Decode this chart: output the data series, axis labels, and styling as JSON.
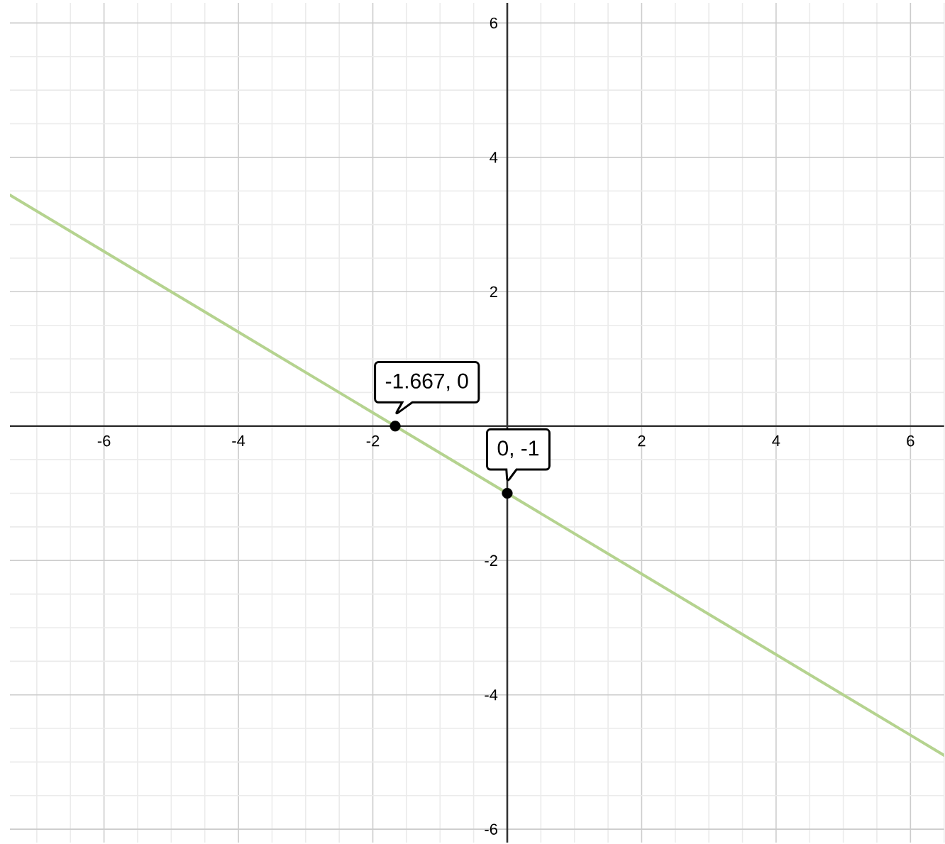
{
  "chart_data": {
    "type": "line",
    "xlim": [
      -7.4,
      6.5
    ],
    "ylim": [
      -6.2,
      6.3
    ],
    "xticks": [
      -6,
      -4,
      -2,
      2,
      4,
      6
    ],
    "yticks": [
      -6,
      -4,
      -2,
      2,
      4,
      6
    ],
    "grid": true,
    "series": [
      {
        "color": "#b5d38f",
        "x": [
          -7.4,
          6.5
        ],
        "values": [
          3.44,
          -4.9
        ]
      },
      {
        "type": "scatter",
        "color": "#000000",
        "marker": "circle",
        "x": [
          -1.667,
          0
        ],
        "values": [
          0,
          -1
        ]
      }
    ],
    "annotations": [
      {
        "text": "-1.667, 0",
        "x": -1.667,
        "y": 0
      },
      {
        "text": "0, -1",
        "x": 0,
        "y": -1
      }
    ]
  }
}
